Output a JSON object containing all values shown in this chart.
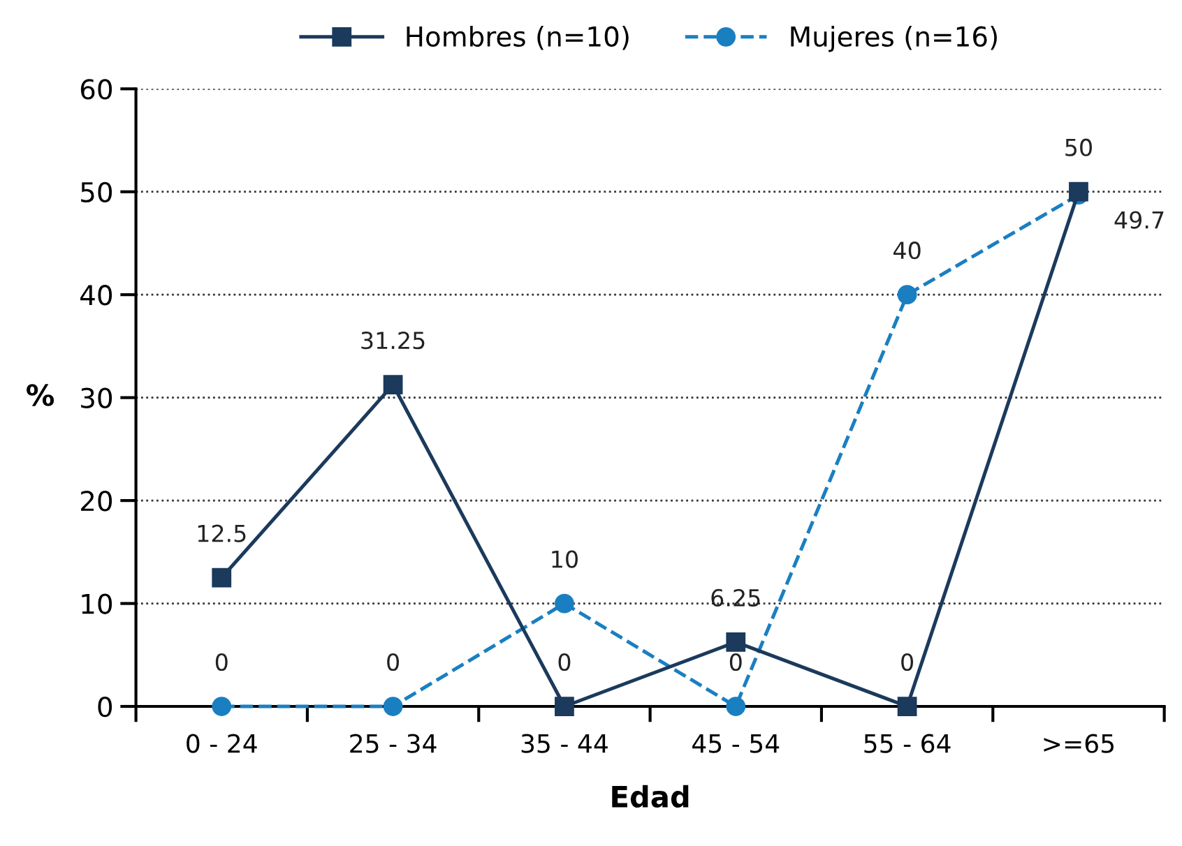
{
  "chart_data": {
    "type": "line",
    "xlabel": "Edad",
    "ylabel": "%",
    "categories": [
      "0 - 24",
      "25 - 34",
      "35 - 44",
      "45 - 54",
      "55 - 64",
      ">=65"
    ],
    "series": [
      {
        "name": "Hombres (n=10)",
        "color": "#1b3a5c",
        "values": [
          12.5,
          31.25,
          0,
          6.25,
          0,
          50
        ],
        "marker": "square",
        "line_style": "solid"
      },
      {
        "name": "Mujeres (n=16)",
        "color": "#1a7fc1",
        "values": [
          0,
          0,
          10,
          0,
          40,
          49.7
        ],
        "marker": "circle",
        "line_style": "dashed"
      }
    ],
    "ylim": [
      0,
      60
    ],
    "yticks": [
      0,
      10,
      20,
      30,
      40,
      50,
      60
    ],
    "grid": "y",
    "legend": "top",
    "data_labels": true
  }
}
